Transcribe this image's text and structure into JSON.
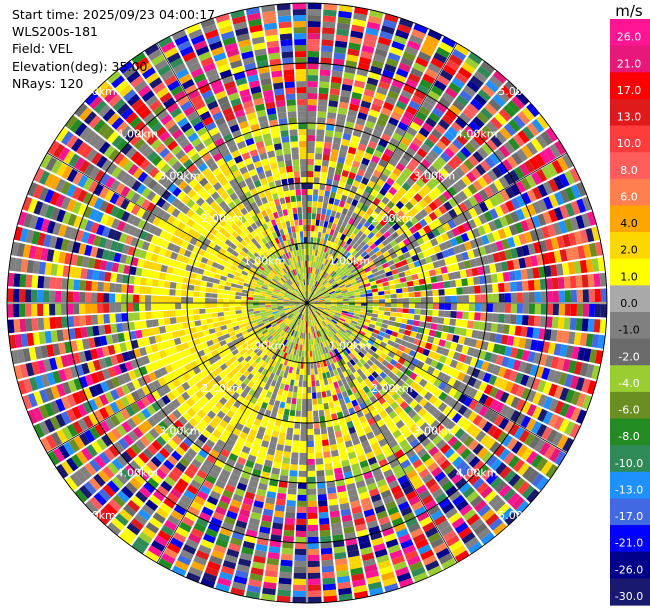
{
  "info": {
    "start_time": "Start time: 2025/09/23 04:00:17",
    "instrument": "WLS200s-181",
    "field": "Field: VEL",
    "elevation": "Elevation(deg): 35.00",
    "nrays": "NRays: 120"
  },
  "chart_data": {
    "type": "heatmap",
    "projection": "polar-ppi",
    "field": "VEL",
    "elevation_deg": 35.0,
    "nrays": 120,
    "range_rings_km": [
      "1.00km",
      "2.00km",
      "3.00km",
      "4.00km",
      "5.00km"
    ],
    "colorbar": {
      "unit": "m/s",
      "ticks": [
        "26.0",
        "21.0",
        "17.0",
        "13.0",
        "10.0",
        "8.0",
        "6.0",
        "4.0",
        "2.0",
        "1.0",
        "0.0",
        "-1.0",
        "-2.0",
        "-4.0",
        "-6.0",
        "-8.0",
        "-10.0",
        "-13.0",
        "-17.0",
        "-21.0",
        "-26.0",
        "-30.0"
      ],
      "colors": [
        "#ff1493",
        "#e8177a",
        "#ff0000",
        "#e01a1a",
        "#ff3c3c",
        "#ff5c5c",
        "#ff7f50",
        "#ffa500",
        "#ffd700",
        "#ffff00",
        "#a9a9a9",
        "#808080",
        "#6b6b6b",
        "#9acd32",
        "#6b8e23",
        "#228b22",
        "#2e8b57",
        "#1e90ff",
        "#4169e1",
        "#0000ff",
        "#00008b",
        "#191970"
      ]
    }
  }
}
